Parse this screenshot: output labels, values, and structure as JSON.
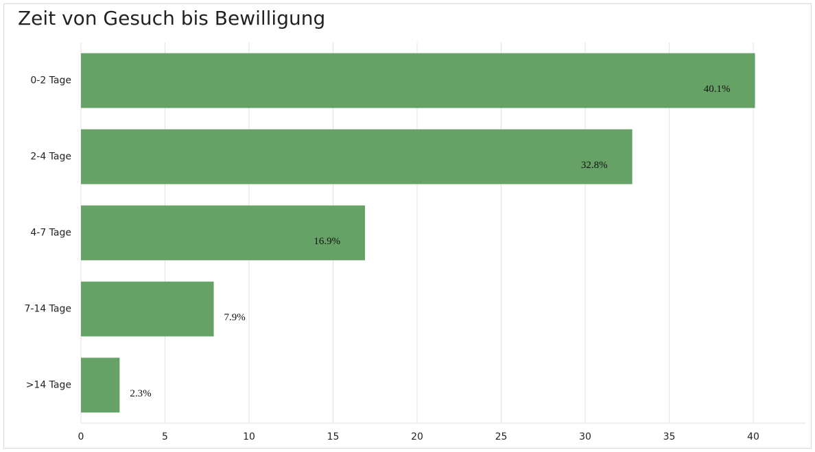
{
  "chart_data": {
    "type": "barh",
    "title": "Zeit von Gesuch bis Bewilligung",
    "categories": [
      "0-2 Tage",
      "2-4 Tage",
      "4-7 Tage",
      "7-14 Tage",
      ">14 Tage"
    ],
    "values": [
      40.1,
      32.8,
      16.9,
      7.9,
      2.3
    ],
    "value_labels": [
      "40.1%",
      "32.8%",
      "16.9%",
      "7.9%",
      "2.3%"
    ],
    "color": "#66a266",
    "xlim": [
      0,
      43.1
    ],
    "xticks": [
      0,
      5,
      10,
      15,
      20,
      25,
      30,
      35,
      40
    ],
    "grid": true
  }
}
